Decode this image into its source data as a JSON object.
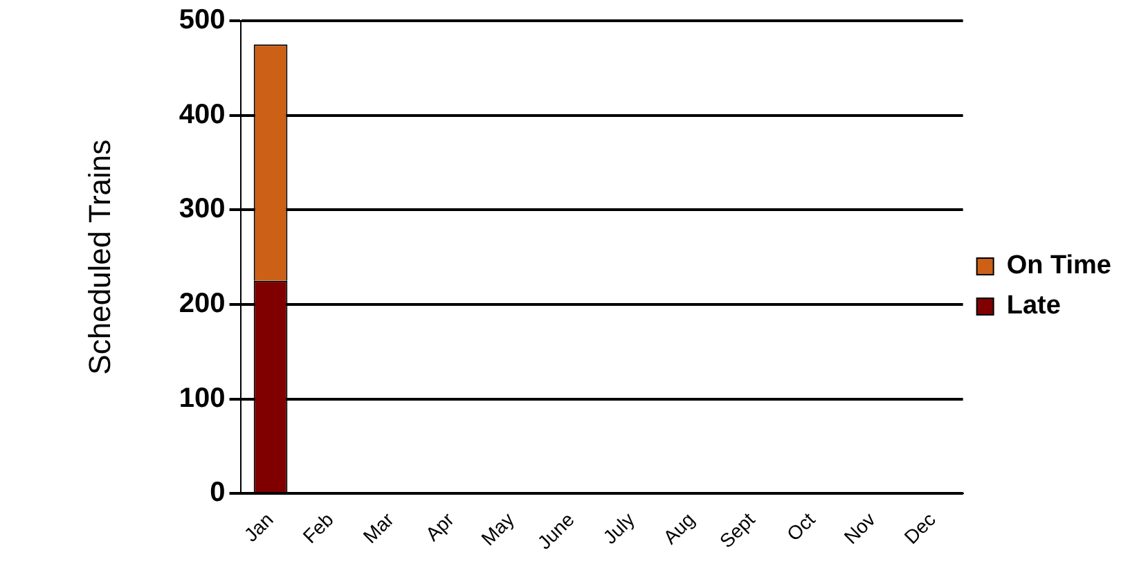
{
  "chart_data": {
    "type": "bar",
    "stacked": true,
    "ylabel": "Scheduled Trains",
    "categories": [
      "Jan",
      "Feb",
      "Mar",
      "Apr",
      "May",
      "June",
      "July",
      "Aug",
      "Sept",
      "Oct",
      "Nov",
      "Dec"
    ],
    "series": [
      {
        "name": "Late",
        "color": "#800000",
        "values": [
          225,
          null,
          null,
          null,
          null,
          null,
          null,
          null,
          null,
          null,
          null,
          null
        ]
      },
      {
        "name": "On Time",
        "color": "#cc6016",
        "values": [
          250,
          null,
          null,
          null,
          null,
          null,
          null,
          null,
          null,
          null,
          null,
          null
        ]
      }
    ],
    "ylim": [
      0,
      500
    ],
    "yticks": [
      0,
      100,
      200,
      300,
      400,
      500
    ],
    "grid": "y",
    "legend": "right"
  }
}
